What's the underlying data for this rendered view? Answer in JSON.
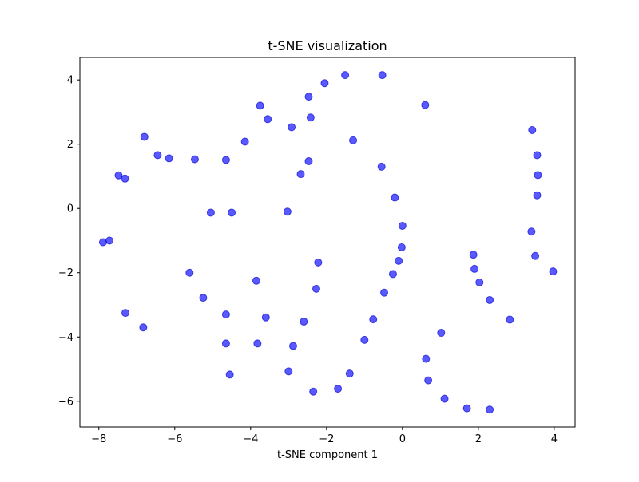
{
  "chart_data": {
    "type": "scatter",
    "title": "t-SNE visualization",
    "xlabel": "t-SNE component 1",
    "ylabel": "",
    "xlim": [
      -8.5,
      4.55
    ],
    "ylim": [
      -6.8,
      4.7
    ],
    "xticks": [
      -8,
      -6,
      -4,
      -2,
      0,
      2,
      4
    ],
    "yticks": [
      -6,
      -4,
      -2,
      0,
      2,
      4
    ],
    "grid": false,
    "marker_color": "#0000ff",
    "marker_edge_color": "#0000cc",
    "marker_opacity": 0.65,
    "points": [
      [
        -1.51,
        4.15
      ],
      [
        -0.53,
        4.15
      ],
      [
        -2.05,
        3.9
      ],
      [
        -3.75,
        3.2
      ],
      [
        0.6,
        3.22
      ],
      [
        -2.47,
        3.48
      ],
      [
        -2.42,
        2.83
      ],
      [
        -3.55,
        2.78
      ],
      [
        -2.92,
        2.53
      ],
      [
        -1.3,
        2.12
      ],
      [
        -4.15,
        2.08
      ],
      [
        -6.8,
        2.23
      ],
      [
        -6.45,
        1.66
      ],
      [
        -6.15,
        1.56
      ],
      [
        -5.47,
        1.53
      ],
      [
        -4.65,
        1.51
      ],
      [
        -2.47,
        1.47
      ],
      [
        -2.68,
        1.07
      ],
      [
        -0.55,
        1.3
      ],
      [
        -0.2,
        0.34
      ],
      [
        -7.48,
        1.03
      ],
      [
        -7.31,
        0.93
      ],
      [
        -5.05,
        -0.13
      ],
      [
        -4.5,
        -0.13
      ],
      [
        -3.03,
        -0.1
      ],
      [
        0.0,
        -0.54
      ],
      [
        -0.02,
        -1.21
      ],
      [
        -0.1,
        -1.63
      ],
      [
        -7.89,
        -1.05
      ],
      [
        -7.72,
        -1.0
      ],
      [
        -2.22,
        -1.68
      ],
      [
        -0.25,
        -2.04
      ],
      [
        -3.85,
        -2.25
      ],
      [
        -2.27,
        -2.5
      ],
      [
        -0.48,
        -2.62
      ],
      [
        -5.61,
        -2.0
      ],
      [
        -5.25,
        -2.78
      ],
      [
        -4.65,
        -3.3
      ],
      [
        -3.6,
        -3.39
      ],
      [
        -7.3,
        -3.25
      ],
      [
        -6.83,
        -3.7
      ],
      [
        -2.6,
        -3.52
      ],
      [
        -0.77,
        -3.45
      ],
      [
        -1.0,
        -4.09
      ],
      [
        -4.65,
        -4.2
      ],
      [
        -3.82,
        -4.2
      ],
      [
        -2.88,
        -4.28
      ],
      [
        -4.55,
        -5.17
      ],
      [
        -3.0,
        -5.07
      ],
      [
        -1.39,
        -5.14
      ],
      [
        -2.35,
        -5.7
      ],
      [
        -1.7,
        -5.61
      ],
      [
        3.42,
        2.44
      ],
      [
        3.55,
        1.66
      ],
      [
        3.57,
        1.04
      ],
      [
        3.55,
        0.41
      ],
      [
        3.4,
        -0.72
      ],
      [
        3.5,
        -1.48
      ],
      [
        3.97,
        -1.96
      ],
      [
        1.87,
        -1.44
      ],
      [
        1.9,
        -1.88
      ],
      [
        2.03,
        -2.3
      ],
      [
        2.3,
        -2.85
      ],
      [
        2.83,
        -3.46
      ],
      [
        1.02,
        -3.87
      ],
      [
        0.62,
        -4.68
      ],
      [
        0.68,
        -5.35
      ],
      [
        1.11,
        -5.92
      ],
      [
        1.7,
        -6.22
      ],
      [
        2.3,
        -6.26
      ]
    ]
  }
}
